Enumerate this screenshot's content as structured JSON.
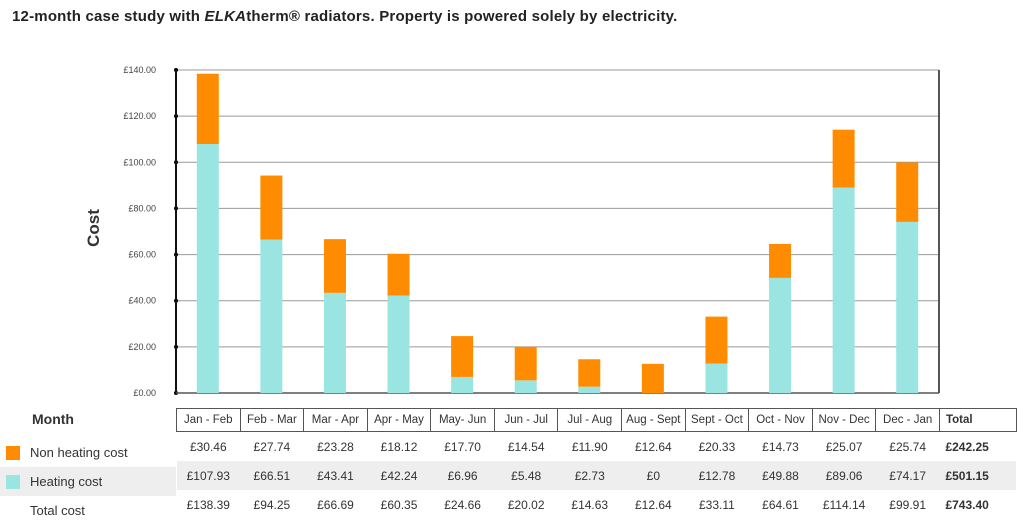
{
  "title": {
    "prefix": "12-month case study with ",
    "brand": "ELKA",
    "rest": "therm® radiators. Property is powered solely by electricity."
  },
  "colors": {
    "heating": "#9AE5E2",
    "non_heating": "#FF8C00",
    "grid": "#999999",
    "frame": "#555555"
  },
  "table": {
    "month_header": "Month",
    "total_header": "Total",
    "rows": [
      {
        "label": "Non heating cost",
        "swatch": "non_heating",
        "values": [
          "£30.46",
          "£27.74",
          "£23.28",
          "£18.12",
          "£17.70",
          "£14.54",
          "£11.90",
          "£12.64",
          "£20.33",
          "£14.73",
          "£25.07",
          "£25.74"
        ],
        "total": "£242.25"
      },
      {
        "label": "Heating cost",
        "swatch": "heating",
        "values": [
          "£107.93",
          "£66.51",
          "£43.41",
          "£42.24",
          "£6.96",
          "£5.48",
          "£2.73",
          "£0",
          "£12.78",
          "£49.88",
          "£89.06",
          "£74.17"
        ],
        "total": "£501.15"
      },
      {
        "label": "Total cost",
        "swatch": "",
        "values": [
          "£138.39",
          "£94.25",
          "£66.69",
          "£60.35",
          "£24.66",
          "£20.02",
          "£14.63",
          "£12.64",
          "£33.11",
          "£64.61",
          "£114.14",
          "£99.91"
        ],
        "total": "£743.40"
      }
    ]
  },
  "chart_data": {
    "type": "bar",
    "stacked": true,
    "title": "12-month case study with ELKAtherm® radiators. Property is powered solely by electricity.",
    "ylabel": "Cost",
    "xlabel": "Month",
    "ylim": [
      0,
      140
    ],
    "ytick_step": 20,
    "ytick_labels": [
      "£0.00",
      "£20.00",
      "£40.00",
      "£60.00",
      "£80.00",
      "£100.00",
      "£120.00",
      "£140.00"
    ],
    "grid": true,
    "categories": [
      "Jan - Feb",
      "Feb - Mar",
      "Mar - Apr",
      "Apr - May",
      "May- Jun",
      "Jun - Jul",
      "Jul - Aug",
      "Aug - Sept",
      "Sept - Oct",
      "Oct - Nov",
      "Nov - Dec",
      "Dec - Jan"
    ],
    "series": [
      {
        "name": "Heating cost",
        "color": "#9AE5E2",
        "values": [
          107.93,
          66.51,
          43.41,
          42.24,
          6.96,
          5.48,
          2.73,
          0,
          12.78,
          49.88,
          89.06,
          74.17
        ]
      },
      {
        "name": "Non heating cost",
        "color": "#FF8C00",
        "values": [
          30.46,
          27.74,
          23.28,
          18.12,
          17.7,
          14.54,
          11.9,
          12.64,
          20.33,
          14.73,
          25.07,
          25.74
        ]
      }
    ]
  }
}
